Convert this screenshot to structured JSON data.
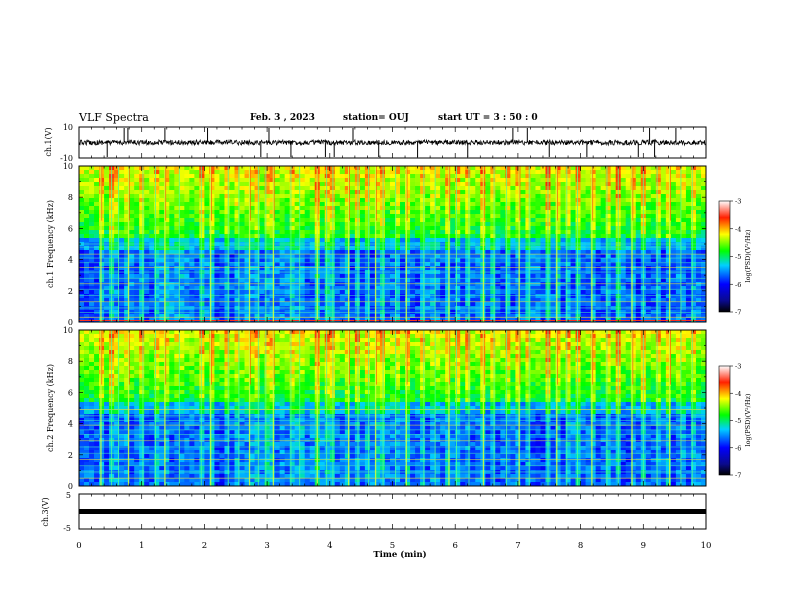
{
  "header": {
    "title": "VLF Spectra",
    "date": "Feb. 3 , 2023",
    "station": "station= OUJ",
    "start_ut": "start UT = 3 : 50 : 0"
  },
  "chart_data": [
    {
      "type": "line",
      "panel": "ch1-waveform",
      "ylabel": "ch.1(V)",
      "ylim": [
        -10,
        10
      ],
      "yticks": [
        "10",
        "-10"
      ],
      "xlim": [
        0,
        10
      ],
      "trace_level": 0,
      "spikes_min": [
        0.45,
        0.72,
        0.78,
        1.37,
        2.05,
        2.9,
        3.03,
        3.38,
        3.93,
        4.07,
        4.37,
        4.78,
        5.4,
        6.2,
        6.92,
        7.15,
        7.5,
        8.1,
        8.92,
        9.1,
        9.18,
        9.52
      ]
    },
    {
      "type": "heatmap",
      "panel": "ch1-spectrogram",
      "ylabel": "ch.1 Frequency (kHz)",
      "ylim": [
        0,
        10
      ],
      "yticks": [
        "0",
        "2",
        "4",
        "6",
        "8",
        "10"
      ],
      "xlim": [
        0,
        10
      ],
      "colorbar": {
        "label": "log(PSD)(V²/Hz)",
        "range": [
          -7,
          -3
        ],
        "ticks": [
          "-3",
          "-4",
          "-5",
          "-6",
          "-7"
        ]
      },
      "bursts_min": [
        0.35,
        0.52,
        0.63,
        0.79,
        1.02,
        1.22,
        1.37,
        1.6,
        1.95,
        2.1,
        2.38,
        2.55,
        2.72,
        2.86,
        2.98,
        3.1,
        3.38,
        3.52,
        3.8,
        3.95,
        4.05,
        4.3,
        4.45,
        4.62,
        4.73,
        4.85,
        5.05,
        5.22,
        5.5,
        5.68,
        5.9,
        6.02,
        6.22,
        6.45,
        6.62,
        6.82,
        7.02,
        7.18,
        7.48,
        7.62,
        7.78,
        7.95,
        8.18,
        8.42,
        8.6,
        8.82,
        9.0,
        9.22,
        9.42,
        9.6,
        9.78
      ]
    },
    {
      "type": "heatmap",
      "panel": "ch2-spectrogram",
      "ylabel": "ch.2 Frequency (kHz)",
      "ylim": [
        0,
        10
      ],
      "yticks": [
        "0",
        "2",
        "4",
        "6",
        "8",
        "10"
      ],
      "xlim": [
        0,
        10
      ],
      "colorbar": {
        "label": "log(PSD)(V²/Hz)",
        "range": [
          -7,
          -3
        ],
        "ticks": [
          "-3",
          "-4",
          "-5",
          "-6",
          "-7"
        ]
      },
      "bursts_min": [
        0.35,
        0.52,
        0.63,
        0.79,
        1.02,
        1.22,
        1.37,
        1.6,
        1.95,
        2.1,
        2.38,
        2.55,
        2.72,
        2.86,
        2.98,
        3.1,
        3.38,
        3.52,
        3.8,
        3.95,
        4.05,
        4.3,
        4.45,
        4.62,
        4.73,
        4.85,
        5.05,
        5.22,
        5.5,
        5.68,
        5.9,
        6.02,
        6.22,
        6.45,
        6.62,
        6.82,
        7.02,
        7.18,
        7.48,
        7.62,
        7.78,
        7.95,
        8.18,
        8.42,
        8.6,
        8.82,
        9.0,
        9.22,
        9.42,
        9.6,
        9.78
      ]
    },
    {
      "type": "line",
      "panel": "ch3-waveform",
      "ylabel": "ch.3(V)",
      "ylim": [
        -5,
        5
      ],
      "yticks": [
        "5",
        "-5"
      ],
      "xlim": [
        0,
        10
      ],
      "xlabel": "Time (min)",
      "xticks": [
        "0",
        "1",
        "2",
        "3",
        "4",
        "5",
        "6",
        "7",
        "8",
        "9",
        "10"
      ],
      "trace_level": 0
    }
  ]
}
